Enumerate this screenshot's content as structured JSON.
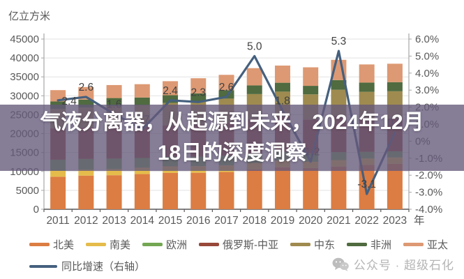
{
  "unit_label": "亿立方米",
  "overlay": {
    "title_line1": "气液分离器，从起源到未来，2024年12月",
    "title_line2": "18日的深度洞察"
  },
  "watermark": {
    "icon": "wechat-icon",
    "text": "公众号 · 超级石化"
  },
  "chart_data": {
    "type": "combo",
    "subtype": "stacked-bar-with-line",
    "x": [
      2011,
      2012,
      2013,
      2014,
      2015,
      2016,
      2017,
      2018,
      2019,
      2020,
      2021,
      2022,
      2023
    ],
    "x_axis_suffix": "年",
    "left_axis": {
      "label": "亿立方米",
      "min": 0,
      "max": 45000,
      "step": 5000
    },
    "right_axis": {
      "min": -4,
      "max": 6,
      "step": 1,
      "format": "percent"
    },
    "grid": true,
    "legend_position": "bottom",
    "bar_series": [
      {
        "name": "北美",
        "color": "#DC7D43",
        "values": [
          8600,
          8900,
          9000,
          9300,
          9600,
          9650,
          9850,
          10500,
          11100,
          10900,
          11300,
          11750,
          12000
        ]
      },
      {
        "name": "南美",
        "color": "#E5BC4B",
        "values": [
          1600,
          1600,
          1650,
          1700,
          1750,
          1750,
          1750,
          1750,
          1750,
          1650,
          1700,
          1700,
          1700
        ]
      },
      {
        "name": "欧洲",
        "color": "#74A753",
        "values": [
          2900,
          2800,
          2750,
          2550,
          2500,
          2500,
          2550,
          2500,
          2350,
          2180,
          2100,
          1750,
          1600
        ]
      },
      {
        "name": "俄罗斯-中亚",
        "color": "#98493A",
        "values": [
          8300,
          8300,
          8400,
          8350,
          8350,
          8450,
          8700,
          9100,
          9250,
          9000,
          9600,
          8800,
          8700
        ]
      },
      {
        "name": "中东",
        "color": "#9F8B4F",
        "values": [
          5100,
          5300,
          5500,
          5600,
          5900,
          6200,
          6400,
          6600,
          6650,
          6650,
          6900,
          7050,
          7200
        ]
      },
      {
        "name": "非洲",
        "color": "#4F6B3F",
        "values": [
          2000,
          2100,
          2100,
          2050,
          2050,
          2080,
          2200,
          2300,
          2350,
          2250,
          2550,
          2450,
          2400
        ]
      },
      {
        "name": "亚太",
        "color": "#DD9973",
        "values": [
          3000,
          3320,
          3440,
          3520,
          3710,
          4010,
          4090,
          4560,
          4540,
          4900,
          5360,
          4790,
          4880
        ]
      }
    ],
    "bar_totals": [
      31500,
      32320,
      32840,
      33070,
      33860,
      34640,
      35540,
      37310,
      37990,
      37530,
      39510,
      38290,
      38480
    ],
    "line_series": {
      "name": "同比增速（右轴）",
      "axis": "right",
      "color": "#45607E",
      "values": [
        2.4,
        2.6,
        1.6,
        0.7,
        2.4,
        2.3,
        2.6,
        5.0,
        1.8,
        -1.2,
        5.3,
        -3.1,
        0.5
      ],
      "data_labels": [
        "2.4",
        "2.6",
        "1.6",
        "0.7",
        "2.4",
        "2.3",
        "2.6",
        "5.0",
        "1.8",
        "-1.2",
        "5.3",
        "-3.1",
        "0.5"
      ]
    },
    "style_colors": {
      "grid": "#e2e2e2",
      "spine": "#a6a6a6",
      "bottom_spine": "#595959",
      "tick_text": "#595959",
      "data_label_text": "#404040",
      "overlay_band": "rgba(100,88,122,0.78)",
      "watermark_gray": "#b5b5b5"
    }
  }
}
